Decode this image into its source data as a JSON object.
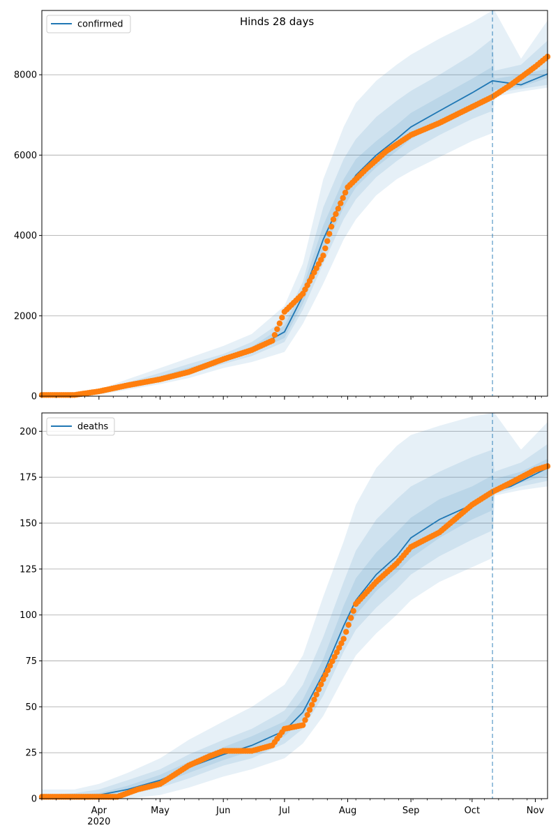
{
  "figure": {
    "title": "Hinds 28 days"
  },
  "colors": {
    "line": "#1f77b4",
    "band": "#1f77b4",
    "points": "#ff7f0e",
    "grid": "#b0b0b0",
    "forecast_line": "#1f77b4"
  },
  "chart_data": [
    {
      "type": "line",
      "name": "confirmed",
      "title": "Hinds 28 days",
      "xlabel": "",
      "ylabel": "",
      "ylim": [
        0,
        9600
      ],
      "yticks": [
        0,
        2000,
        4000,
        6000,
        8000
      ],
      "x_range": [
        "2020-03-04",
        "2020-11-07"
      ],
      "forecast_start": "2020-10-11",
      "grid": "horizontal",
      "legend_position": "top-left",
      "series": [
        {
          "name": "confirmed",
          "kind": "model-median",
          "x": [
            "2020-03-04",
            "2020-03-20",
            "2020-04-01",
            "2020-04-15",
            "2020-05-01",
            "2020-05-15",
            "2020-06-01",
            "2020-06-15",
            "2020-07-01",
            "2020-07-10",
            "2020-07-20",
            "2020-07-30",
            "2020-08-05",
            "2020-08-15",
            "2020-08-25",
            "2020-09-01",
            "2020-09-15",
            "2020-10-01",
            "2020-10-11",
            "2020-10-25",
            "2020-11-07"
          ],
          "values": [
            20,
            30,
            80,
            260,
            450,
            650,
            900,
            1150,
            1600,
            2500,
            3900,
            5000,
            5500,
            6000,
            6400,
            6700,
            7100,
            7550,
            7850,
            7750,
            8020
          ]
        },
        {
          "name": "observed",
          "kind": "points",
          "x": [
            "2020-03-04",
            "2020-03-20",
            "2020-04-01",
            "2020-04-15",
            "2020-05-01",
            "2020-05-15",
            "2020-06-01",
            "2020-06-15",
            "2020-06-25",
            "2020-07-01",
            "2020-07-10",
            "2020-07-20",
            "2020-07-25",
            "2020-08-01",
            "2020-08-10",
            "2020-08-20",
            "2020-09-01",
            "2020-09-15",
            "2020-10-01",
            "2020-10-11",
            "2020-10-20",
            "2020-11-01",
            "2020-11-07"
          ],
          "values": [
            30,
            30,
            120,
            270,
            420,
            600,
            920,
            1150,
            1380,
            2100,
            2550,
            3500,
            4400,
            5200,
            5650,
            6100,
            6500,
            6800,
            7200,
            7450,
            7750,
            8200,
            8450
          ]
        }
      ],
      "bands": {
        "x": [
          "2020-03-04",
          "2020-03-20",
          "2020-04-01",
          "2020-04-15",
          "2020-05-01",
          "2020-05-15",
          "2020-06-01",
          "2020-06-15",
          "2020-07-01",
          "2020-07-10",
          "2020-07-20",
          "2020-07-30",
          "2020-08-05",
          "2020-08-15",
          "2020-08-25",
          "2020-09-01",
          "2020-09-15",
          "2020-10-01",
          "2020-10-11",
          "2020-10-12",
          "2020-10-25",
          "2020-11-07"
        ],
        "outer_low": [
          0,
          0,
          40,
          160,
          300,
          450,
          700,
          850,
          1100,
          1800,
          2800,
          3900,
          4400,
          5000,
          5400,
          5600,
          5950,
          6350,
          6550,
          7450,
          7580,
          7680
        ],
        "outer_high": [
          80,
          100,
          160,
          420,
          700,
          950,
          1250,
          1550,
          2250,
          3300,
          5400,
          6700,
          7300,
          7850,
          8250,
          8500,
          8900,
          9300,
          9600,
          9600,
          8400,
          9350
        ],
        "mid_low": [
          10,
          15,
          60,
          200,
          360,
          540,
          800,
          1000,
          1350,
          2150,
          3300,
          4400,
          4900,
          5450,
          5850,
          6100,
          6500,
          6900,
          7100,
          7550,
          7650,
          7750
        ],
        "mid_high": [
          50,
          60,
          120,
          340,
          580,
          800,
          1050,
          1350,
          1900,
          2850,
          4700,
          5900,
          6400,
          6950,
          7350,
          7600,
          8000,
          8500,
          8900,
          8100,
          8250,
          8850
        ],
        "inner_low": [
          15,
          25,
          70,
          235,
          410,
          600,
          860,
          1080,
          1450,
          2300,
          3600,
          4700,
          5200,
          5700,
          6100,
          6400,
          6800,
          7250,
          7500,
          7620,
          7700,
          7920
        ],
        "inner_high": [
          30,
          40,
          95,
          290,
          500,
          710,
          960,
          1230,
          1760,
          2700,
          4250,
          5400,
          5900,
          6350,
          6750,
          7050,
          7450,
          7900,
          8200,
          7900,
          8000,
          8150
        ]
      },
      "x_ticks": [
        {
          "date": "2020-04-01",
          "label": "Apr"
        },
        {
          "date": "2020-05-01",
          "label": "May"
        },
        {
          "date": "2020-06-01",
          "label": "Jun"
        },
        {
          "date": "2020-07-01",
          "label": "Jul"
        },
        {
          "date": "2020-08-01",
          "label": "Aug"
        },
        {
          "date": "2020-09-01",
          "label": "Sep"
        },
        {
          "date": "2020-10-01",
          "label": "Oct"
        },
        {
          "date": "2020-11-01",
          "label": "Nov"
        }
      ],
      "x_tick_labels_visible": false
    },
    {
      "type": "line",
      "name": "deaths",
      "xlabel": "",
      "ylabel": "",
      "ylim": [
        0,
        210
      ],
      "yticks": [
        0,
        25,
        50,
        75,
        100,
        125,
        150,
        175,
        200
      ],
      "x_range": [
        "2020-03-04",
        "2020-11-07"
      ],
      "forecast_start": "2020-10-11",
      "grid": "horizontal",
      "legend_position": "top-left",
      "series": [
        {
          "name": "deaths",
          "kind": "model-median",
          "x": [
            "2020-03-04",
            "2020-03-20",
            "2020-04-01",
            "2020-04-15",
            "2020-05-01",
            "2020-05-15",
            "2020-06-01",
            "2020-06-15",
            "2020-07-01",
            "2020-07-10",
            "2020-07-20",
            "2020-07-30",
            "2020-08-05",
            "2020-08-15",
            "2020-08-25",
            "2020-09-01",
            "2020-09-15",
            "2020-10-01",
            "2020-10-11",
            "2020-10-20",
            "2020-11-07"
          ],
          "values": [
            0,
            1,
            2,
            5,
            10,
            17,
            24,
            29,
            37,
            47,
            68,
            94,
            108,
            122,
            132,
            142,
            152,
            160,
            167,
            170,
            180
          ]
        },
        {
          "name": "observed",
          "kind": "points",
          "x": [
            "2020-03-04",
            "2020-03-20",
            "2020-04-10",
            "2020-04-20",
            "2020-05-01",
            "2020-05-15",
            "2020-05-25",
            "2020-06-01",
            "2020-06-15",
            "2020-06-25",
            "2020-07-01",
            "2020-07-10",
            "2020-07-20",
            "2020-07-30",
            "2020-08-05",
            "2020-08-15",
            "2020-08-25",
            "2020-09-01",
            "2020-09-15",
            "2020-10-01",
            "2020-10-11",
            "2020-10-20",
            "2020-11-01",
            "2020-11-07"
          ],
          "values": [
            1,
            1,
            1,
            5,
            8,
            18,
            23,
            26,
            26,
            29,
            38,
            40,
            65,
            87,
            106,
            118,
            128,
            137,
            145,
            160,
            167,
            172,
            179,
            181
          ]
        }
      ],
      "bands": {
        "x": [
          "2020-03-04",
          "2020-03-20",
          "2020-04-01",
          "2020-04-15",
          "2020-05-01",
          "2020-05-15",
          "2020-06-01",
          "2020-06-15",
          "2020-07-01",
          "2020-07-10",
          "2020-07-20",
          "2020-07-30",
          "2020-08-05",
          "2020-08-15",
          "2020-08-25",
          "2020-09-01",
          "2020-09-15",
          "2020-10-01",
          "2020-10-11",
          "2020-10-12",
          "2020-10-25",
          "2020-11-07"
        ],
        "outer_low": [
          0,
          0,
          0,
          0,
          2,
          6,
          12,
          16,
          22,
          30,
          45,
          66,
          78,
          90,
          100,
          108,
          118,
          126,
          131,
          165,
          168,
          170
        ],
        "outer_high": [
          5,
          5,
          8,
          14,
          22,
          32,
          42,
          50,
          62,
          78,
          110,
          140,
          160,
          180,
          192,
          198,
          203,
          208,
          210,
          210,
          190,
          205
        ],
        "mid_low": [
          0,
          0,
          1,
          2,
          6,
          11,
          18,
          22,
          30,
          38,
          56,
          80,
          92,
          104,
          114,
          122,
          132,
          141,
          146,
          166,
          170,
          173
        ],
        "mid_high": [
          2,
          3,
          5,
          10,
          16,
          24,
          32,
          38,
          48,
          62,
          88,
          118,
          135,
          152,
          163,
          170,
          178,
          186,
          190,
          178,
          183,
          193
        ],
        "inner_low": [
          0,
          1,
          1,
          4,
          8,
          14,
          21,
          26,
          34,
          43,
          62,
          87,
          100,
          113,
          123,
          131,
          142,
          152,
          157,
          168,
          172,
          176
        ],
        "inner_high": [
          1,
          2,
          3,
          7,
          13,
          20,
          28,
          34,
          42,
          54,
          76,
          105,
          120,
          134,
          145,
          153,
          163,
          170,
          176,
          174,
          178,
          185
        ]
      },
      "x_ticks": [
        {
          "date": "2020-04-01",
          "label": "Apr"
        },
        {
          "date": "2020-05-01",
          "label": "May"
        },
        {
          "date": "2020-06-01",
          "label": "Jun"
        },
        {
          "date": "2020-07-01",
          "label": "Jul"
        },
        {
          "date": "2020-08-01",
          "label": "Aug"
        },
        {
          "date": "2020-09-01",
          "label": "Sep"
        },
        {
          "date": "2020-10-01",
          "label": "Oct"
        },
        {
          "date": "2020-11-01",
          "label": "Nov"
        }
      ],
      "x_year_label": "2020",
      "x_tick_labels_visible": true
    }
  ]
}
